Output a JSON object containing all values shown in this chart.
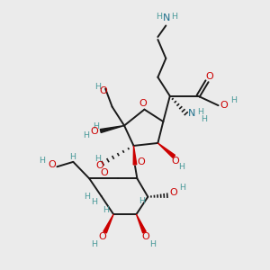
{
  "background_color": "#ebebeb",
  "bond_color": "#1a1a1a",
  "bond_width": 1.4,
  "atom_colors": {
    "O": "#cc0000",
    "N": "#1f6f8b",
    "C": "#1a1a1a",
    "H": "#4a9a9a"
  },
  "font_size_atom": 8.0,
  "font_size_H": 6.8
}
